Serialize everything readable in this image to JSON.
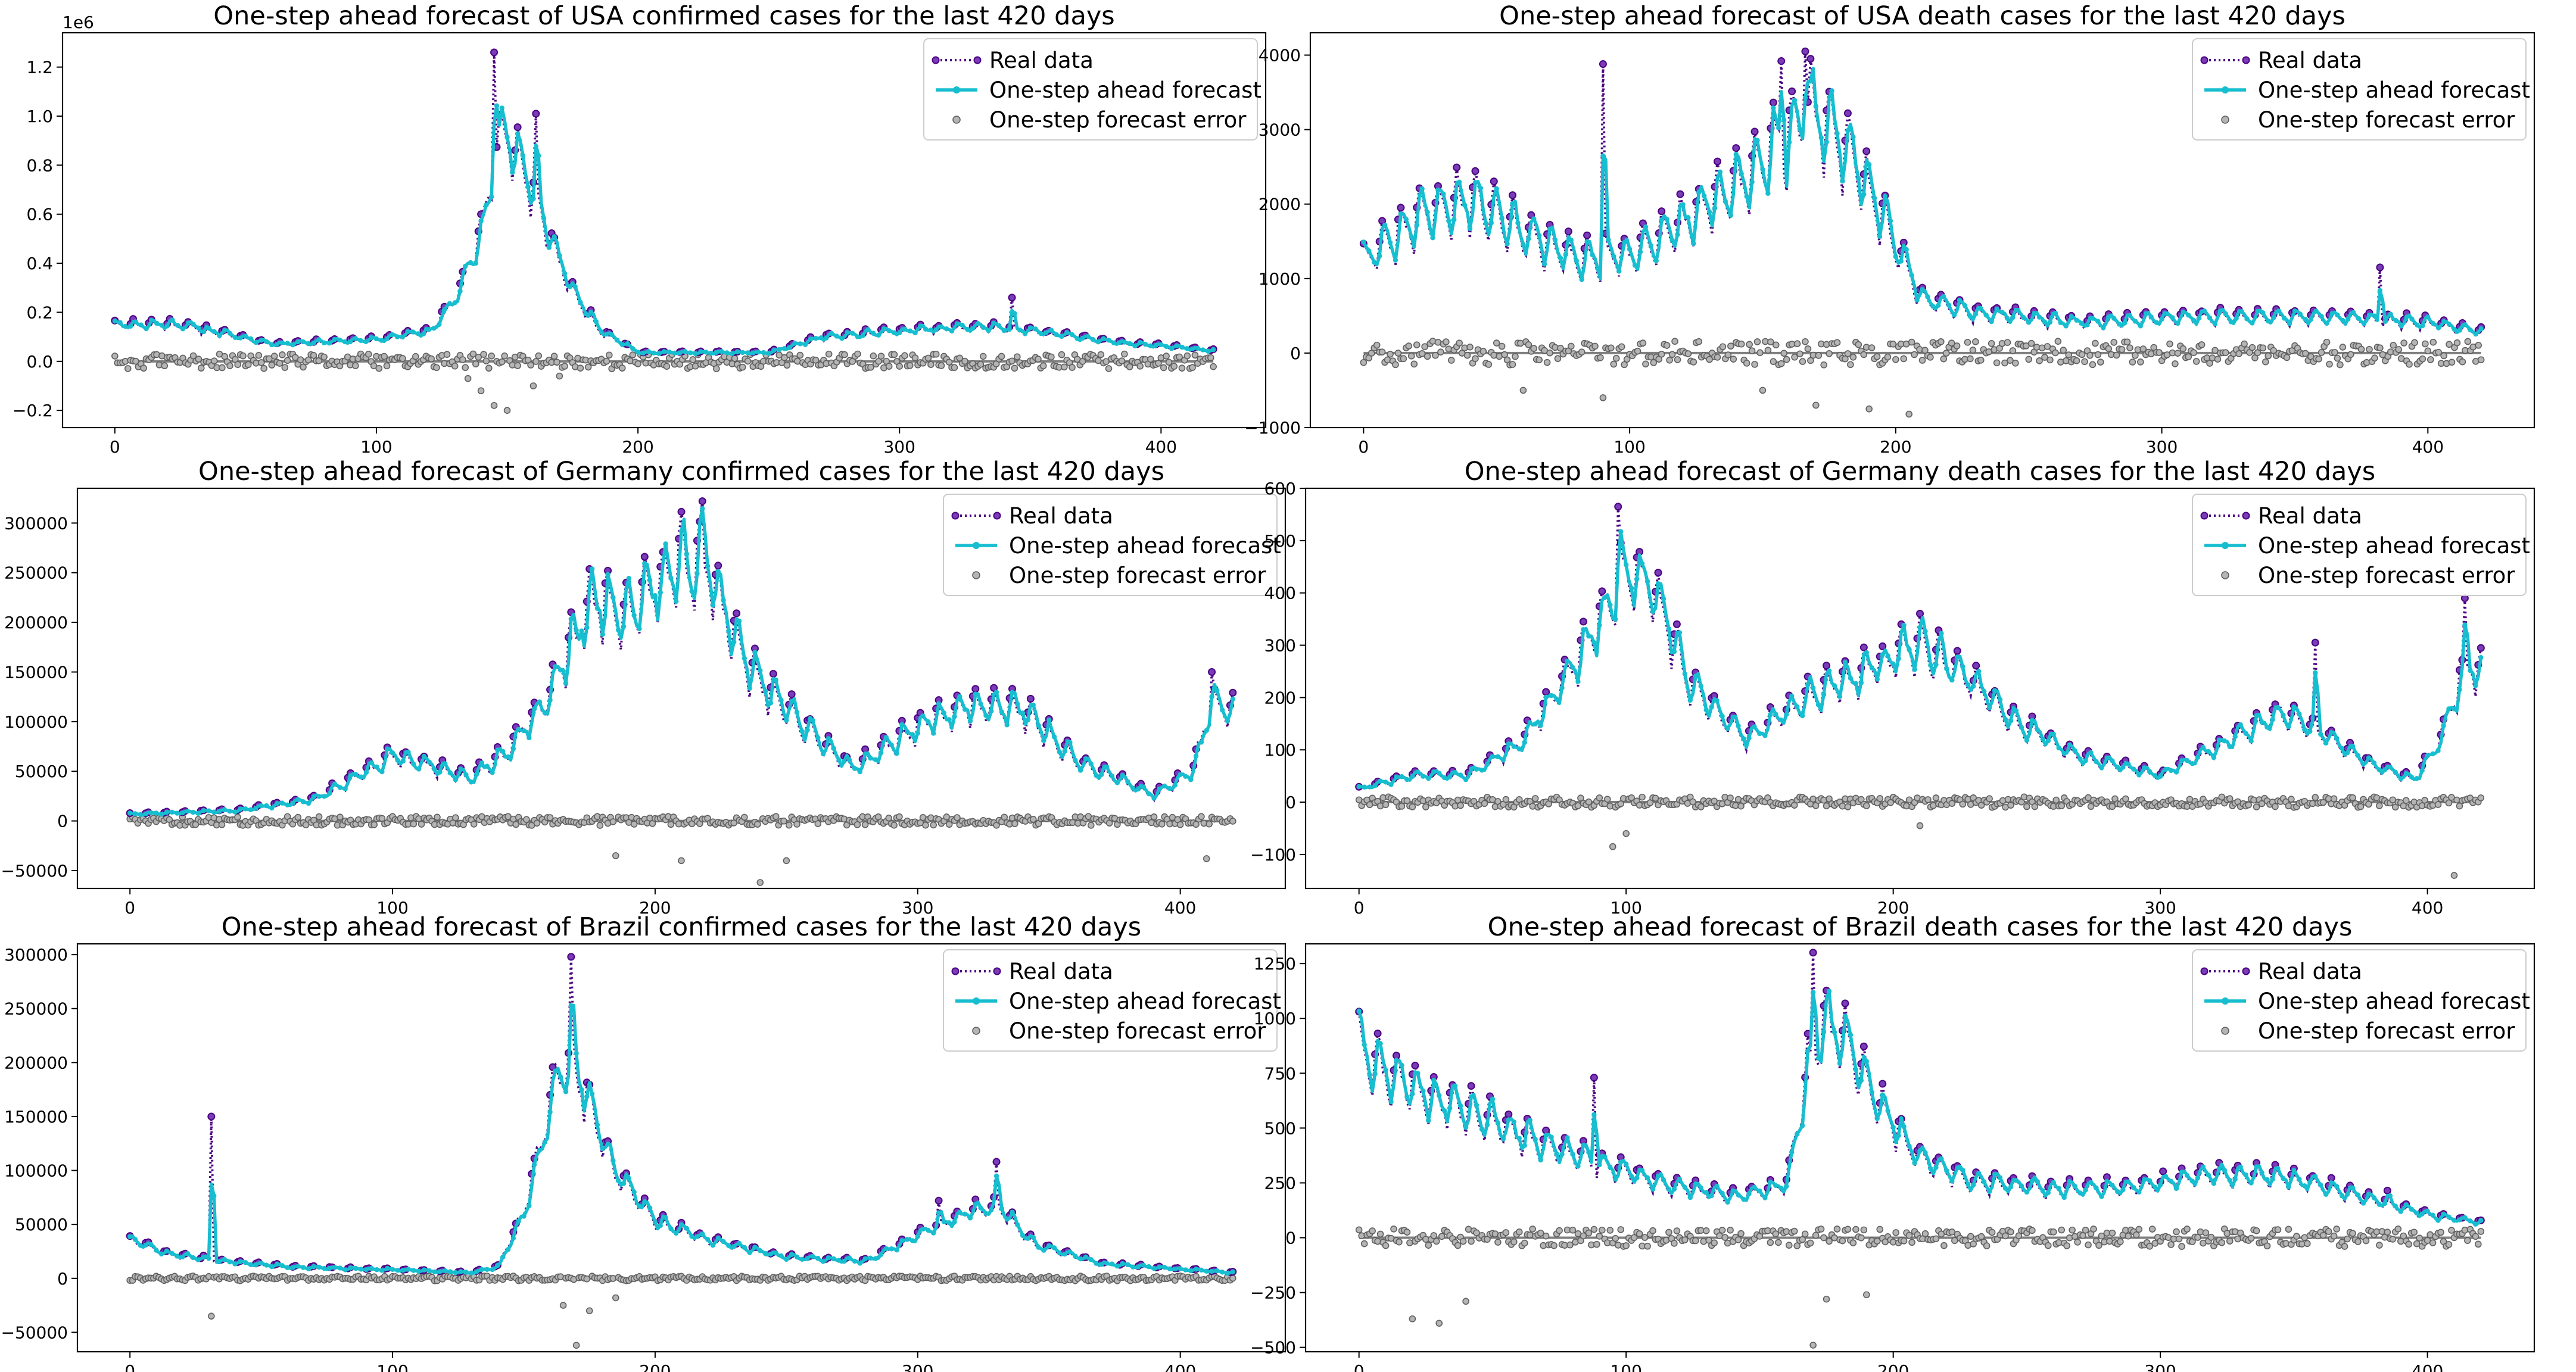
{
  "colors": {
    "real": "#4b0082",
    "forecast": "#17becf",
    "error": "#808080"
  },
  "legend": {
    "real": "Real data",
    "forecast": "One-step ahead forecast",
    "error": "One-step forecast error"
  },
  "chart_data": [
    {
      "id": "usa-confirmed",
      "type": "line",
      "title": "One-step ahead forecast of USA confirmed cases for the last 420 days",
      "xlabel": "",
      "ylabel": "",
      "xlim": [
        -20,
        440
      ],
      "ylim": [
        -0.27,
        1.34
      ],
      "yscale_label": "1e6",
      "x_ticks": [
        0,
        100,
        200,
        300,
        400
      ],
      "x_tick_labels": [
        "0",
        "100",
        "200",
        "300",
        "400"
      ],
      "y_ticks": [
        -0.2,
        0.0,
        0.2,
        0.4,
        0.6,
        0.8,
        1.0,
        1.2
      ],
      "y_tick_labels": [
        "−0.2",
        "0.0",
        "0.2",
        "0.4",
        "0.6",
        "0.8",
        "1.0",
        "1.2"
      ],
      "legend_position": "top-right",
      "keypoints": [
        [
          0,
          0.17
        ],
        [
          25,
          0.17
        ],
        [
          60,
          0.08
        ],
        [
          100,
          0.1
        ],
        [
          120,
          0.14
        ],
        [
          130,
          0.28
        ],
        [
          140,
          0.6
        ],
        [
          148,
          1.05
        ],
        [
          155,
          0.92
        ],
        [
          165,
          0.6
        ],
        [
          175,
          0.32
        ],
        [
          185,
          0.15
        ],
        [
          200,
          0.04
        ],
        [
          250,
          0.04
        ],
        [
          270,
          0.11
        ],
        [
          300,
          0.14
        ],
        [
          330,
          0.16
        ],
        [
          345,
          0.15
        ],
        [
          380,
          0.09
        ],
        [
          420,
          0.05
        ]
      ],
      "amp": 0.45,
      "spikes": [
        [
          145,
          1.26
        ],
        [
          161,
          1.01
        ],
        [
          343,
          0.26
        ]
      ],
      "err_noise": 0.03,
      "err_dips": [
        [
          135,
          -0.07
        ],
        [
          140,
          -0.12
        ],
        [
          145,
          -0.18
        ],
        [
          150,
          -0.2
        ],
        [
          160,
          -0.1
        ],
        [
          170,
          -0.06
        ]
      ],
      "seed": 11
    },
    {
      "id": "usa-death",
      "type": "line",
      "title": "One-step ahead forecast of USA death cases for the last 420 days",
      "xlabel": "",
      "ylabel": "",
      "xlim": [
        -20,
        440
      ],
      "ylim": [
        -1000,
        4300
      ],
      "x_ticks": [
        0,
        100,
        200,
        300,
        400
      ],
      "x_tick_labels": [
        "0",
        "100",
        "200",
        "300",
        "400"
      ],
      "y_ticks": [
        -1000,
        0,
        1000,
        2000,
        3000,
        4000
      ],
      "y_tick_labels": [
        "−1000",
        "0",
        "1000",
        "2000",
        "3000",
        "4000"
      ],
      "legend_position": "top-right",
      "keypoints": [
        [
          0,
          1500
        ],
        [
          20,
          2200
        ],
        [
          40,
          2500
        ],
        [
          60,
          2000
        ],
        [
          80,
          1500
        ],
        [
          100,
          1600
        ],
        [
          120,
          2100
        ],
        [
          140,
          2700
        ],
        [
          160,
          3600
        ],
        [
          170,
          3900
        ],
        [
          180,
          3400
        ],
        [
          195,
          2200
        ],
        [
          210,
          900
        ],
        [
          230,
          650
        ],
        [
          270,
          500
        ],
        [
          300,
          560
        ],
        [
          330,
          600
        ],
        [
          370,
          570
        ],
        [
          400,
          500
        ],
        [
          420,
          350
        ]
      ],
      "amp": 0.7,
      "spikes": [
        [
          90,
          3880
        ],
        [
          157,
          3920
        ],
        [
          166,
          4050
        ],
        [
          382,
          1150
        ]
      ],
      "err_noise": 160,
      "err_dips": [
        [
          60,
          -500
        ],
        [
          90,
          -600
        ],
        [
          150,
          -500
        ],
        [
          170,
          -700
        ],
        [
          190,
          -750
        ],
        [
          205,
          -820
        ]
      ],
      "seed": 23
    },
    {
      "id": "germany-confirmed",
      "type": "line",
      "title": "One-step ahead forecast of Germany confirmed cases for the last 420 days",
      "xlabel": "",
      "ylabel": "",
      "xlim": [
        -20,
        440
      ],
      "ylim": [
        -68000,
        335000
      ],
      "x_ticks": [
        0,
        100,
        200,
        300,
        400
      ],
      "x_tick_labels": [
        "0",
        "100",
        "200",
        "300",
        "400"
      ],
      "y_ticks": [
        -50000,
        0,
        50000,
        100000,
        150000,
        200000,
        250000,
        300000
      ],
      "y_tick_labels": [
        "−50000",
        "0",
        "50000",
        "100000",
        "150000",
        "200000",
        "250000",
        "300000"
      ],
      "legend_position": "top-right",
      "keypoints": [
        [
          0,
          8000
        ],
        [
          40,
          12000
        ],
        [
          70,
          25000
        ],
        [
          100,
          75000
        ],
        [
          130,
          50000
        ],
        [
          145,
          85000
        ],
        [
          160,
          150000
        ],
        [
          175,
          255000
        ],
        [
          190,
          245000
        ],
        [
          210,
          300000
        ],
        [
          220,
          295000
        ],
        [
          235,
          180000
        ],
        [
          250,
          130000
        ],
        [
          275,
          60000
        ],
        [
          300,
          110000
        ],
        [
          320,
          135000
        ],
        [
          340,
          130000
        ],
        [
          360,
          70000
        ],
        [
          390,
          30000
        ],
        [
          405,
          60000
        ],
        [
          412,
          140000
        ],
        [
          420,
          125000
        ]
      ],
      "amp": 0.55,
      "spikes": [
        [
          218,
          322000
        ],
        [
          412,
          150000
        ]
      ],
      "err_noise": 4500,
      "err_dips": [
        [
          185,
          -35000
        ],
        [
          210,
          -40000
        ],
        [
          240,
          -62000
        ],
        [
          250,
          -40000
        ],
        [
          410,
          -38000
        ]
      ],
      "seed": 37
    },
    {
      "id": "germany-death",
      "type": "line",
      "title": "One-step ahead forecast of Germany death cases for the last 420 days",
      "xlabel": "",
      "ylabel": "",
      "xlim": [
        -20,
        440
      ],
      "ylim": [
        -165,
        600
      ],
      "x_ticks": [
        0,
        100,
        200,
        300,
        400
      ],
      "x_tick_labels": [
        "0",
        "100",
        "200",
        "300",
        "400"
      ],
      "y_ticks": [
        -100,
        0,
        100,
        200,
        300,
        400,
        500,
        600
      ],
      "y_tick_labels": [
        "−100",
        "0",
        "100",
        "200",
        "300",
        "400",
        "500",
        "600"
      ],
      "legend_position": "top-right",
      "keypoints": [
        [
          0,
          30
        ],
        [
          20,
          60
        ],
        [
          40,
          60
        ],
        [
          60,
          130
        ],
        [
          75,
          250
        ],
        [
          90,
          400
        ],
        [
          100,
          520
        ],
        [
          110,
          470
        ],
        [
          125,
          250
        ],
        [
          145,
          140
        ],
        [
          170,
          240
        ],
        [
          190,
          290
        ],
        [
          210,
          350
        ],
        [
          225,
          290
        ],
        [
          245,
          180
        ],
        [
          270,
          100
        ],
        [
          300,
          60
        ],
        [
          330,
          150
        ],
        [
          345,
          200
        ],
        [
          360,
          150
        ],
        [
          380,
          80
        ],
        [
          395,
          50
        ],
        [
          405,
          140
        ],
        [
          414,
          300
        ],
        [
          420,
          290
        ]
      ],
      "amp": 0.55,
      "spikes": [
        [
          97,
          565
        ],
        [
          414,
          390
        ],
        [
          358,
          305
        ]
      ],
      "err_noise": 10,
      "err_dips": [
        [
          95,
          -85
        ],
        [
          100,
          -60
        ],
        [
          210,
          -45
        ],
        [
          410,
          -140
        ]
      ],
      "seed": 53
    },
    {
      "id": "brazil-confirmed",
      "type": "line",
      "title": "One-step ahead forecast of Brazil confirmed cases for the last 420 days",
      "xlabel": "",
      "ylabel": "",
      "xlim": [
        -20,
        440
      ],
      "ylim": [
        -68000,
        310000
      ],
      "x_ticks": [
        0,
        100,
        200,
        300,
        400
      ],
      "x_tick_labels": [
        "0",
        "100",
        "200",
        "300",
        "400"
      ],
      "y_ticks": [
        -50000,
        0,
        50000,
        100000,
        150000,
        200000,
        250000,
        300000
      ],
      "y_tick_labels": [
        "−50000",
        "0",
        "50000",
        "100000",
        "150000",
        "200000",
        "250000",
        "300000"
      ],
      "legend_position": "top-right",
      "keypoints": [
        [
          0,
          40000
        ],
        [
          15,
          25000
        ],
        [
          35,
          18000
        ],
        [
          60,
          12000
        ],
        [
          100,
          9000
        ],
        [
          130,
          6000
        ],
        [
          140,
          12000
        ],
        [
          150,
          70000
        ],
        [
          162,
          200000
        ],
        [
          168,
          230000
        ],
        [
          175,
          180000
        ],
        [
          185,
          110000
        ],
        [
          200,
          60000
        ],
        [
          220,
          40000
        ],
        [
          250,
          22000
        ],
        [
          280,
          18000
        ],
        [
          300,
          45000
        ],
        [
          320,
          70000
        ],
        [
          330,
          75000
        ],
        [
          345,
          35000
        ],
        [
          370,
          15000
        ],
        [
          420,
          6000
        ]
      ],
      "amp": 0.45,
      "spikes": [
        [
          31,
          150000
        ],
        [
          168,
          298000
        ],
        [
          330,
          108000
        ],
        [
          308,
          72000
        ]
      ],
      "err_noise": 2200,
      "err_dips": [
        [
          31,
          -35000
        ],
        [
          165,
          -25000
        ],
        [
          170,
          -62000
        ],
        [
          175,
          -30000
        ],
        [
          185,
          -18000
        ]
      ],
      "seed": 71
    },
    {
      "id": "brazil-death",
      "type": "line",
      "title": "One-step ahead forecast of Brazil death cases for the last 420 days",
      "xlabel": "",
      "ylabel": "",
      "xlim": [
        -20,
        440
      ],
      "ylim": [
        -520,
        1340
      ],
      "x_ticks": [
        0,
        100,
        200,
        300,
        400
      ],
      "x_tick_labels": [
        "0",
        "100",
        "200",
        "300",
        "400"
      ],
      "y_ticks": [
        -500,
        -250,
        0,
        250,
        500,
        750,
        1000,
        1250
      ],
      "y_tick_labels": [
        "−500",
        "−250",
        "0",
        "250",
        "500",
        "750",
        "1000",
        "1250"
      ],
      "legend_position": "top-right",
      "keypoints": [
        [
          0,
          1050
        ],
        [
          10,
          880
        ],
        [
          30,
          750
        ],
        [
          50,
          620
        ],
        [
          70,
          500
        ],
        [
          90,
          400
        ],
        [
          110,
          300
        ],
        [
          140,
          220
        ],
        [
          160,
          280
        ],
        [
          168,
          900
        ],
        [
          175,
          1150
        ],
        [
          182,
          1050
        ],
        [
          195,
          700
        ],
        [
          210,
          420
        ],
        [
          230,
          300
        ],
        [
          260,
          260
        ],
        [
          290,
          270
        ],
        [
          320,
          340
        ],
        [
          340,
          330
        ],
        [
          360,
          280
        ],
        [
          380,
          200
        ],
        [
          400,
          120
        ],
        [
          420,
          80
        ]
      ],
      "amp": 0.6,
      "spikes": [
        [
          170,
          1300
        ],
        [
          88,
          730
        ],
        [
          385,
          215
        ]
      ],
      "err_noise": 40,
      "err_dips": [
        [
          20,
          -370
        ],
        [
          30,
          -390
        ],
        [
          40,
          -290
        ],
        [
          170,
          -490
        ],
        [
          175,
          -280
        ],
        [
          190,
          -260
        ]
      ],
      "seed": 97
    }
  ]
}
